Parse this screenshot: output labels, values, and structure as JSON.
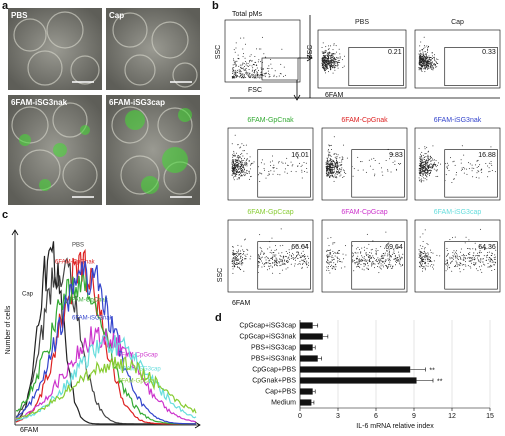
{
  "panel_a": {
    "label": "a",
    "images": [
      {
        "label": "PBS"
      },
      {
        "label": "Cap"
      },
      {
        "label": "6FAM-iSG3nak"
      },
      {
        "label": "6FAM-iSG3cap"
      }
    ]
  },
  "panel_b": {
    "label": "b",
    "y_label": "SSC",
    "x_label": "6FAM",
    "gating": {
      "title": "Total pMs",
      "y_label": "SSC",
      "x_label": "FSC"
    },
    "plots": [
      {
        "title": "PBS",
        "percent": 0.21,
        "color": "#222222"
      },
      {
        "title": "Cap",
        "percent": 0.33,
        "color": "#222222"
      },
      {
        "title": "6FAM-GpCnak",
        "percent": 16.01,
        "color": "#33aa33"
      },
      {
        "title": "6FAM-CpGnak",
        "percent": 9.83,
        "color": "#dd2222"
      },
      {
        "title": "6FAM-iSG3nak",
        "percent": 16.88,
        "color": "#3344cc"
      },
      {
        "title": "6FAM-GpCcap",
        "percent": 66.64,
        "color": "#88cc33"
      },
      {
        "title": "6FAM-CpGcap",
        "percent": 69.64,
        "color": "#cc33cc"
      },
      {
        "title": "6FAM-iSG3cap",
        "percent": 64.36,
        "color": "#66dddd"
      }
    ]
  },
  "panel_c": {
    "label": "c",
    "y_label": "Number of cells",
    "x_label": "6FAM",
    "curves": [
      {
        "name": "PBS",
        "color": "#444444"
      },
      {
        "name": "Cap",
        "color": "#222222"
      },
      {
        "name": "6FAM-CpGnak",
        "color": "#dd2222"
      },
      {
        "name": "6FAM-GpCnak",
        "color": "#33aa33"
      },
      {
        "name": "6FAM-iSG3nak",
        "color": "#3344cc"
      },
      {
        "name": "6FAM-CpGcap",
        "color": "#cc33cc"
      },
      {
        "name": "6FAM-iSG3cap",
        "color": "#66dddd"
      },
      {
        "name": "6FAM-GpCcap",
        "color": "#88cc33"
      }
    ]
  },
  "chart_data": {
    "type": "bar",
    "panel_label": "d",
    "orientation": "horizontal",
    "categories": [
      "CpGcap+iSG3cap",
      "CpGcap+iSG3nak",
      "PBS+iSG3cap",
      "PBS+iSG3nak",
      "CpGcap+PBS",
      "CpGnak+PBS",
      "Cap+PBS",
      "Medium"
    ],
    "values": [
      1.0,
      1.8,
      1.0,
      1.4,
      8.7,
      9.2,
      1.0,
      0.9
    ],
    "errors": [
      0.4,
      0.4,
      0.2,
      0.3,
      1.2,
      1.3,
      0.2,
      0.2
    ],
    "color": "#111111",
    "x_label": "IL-6 mRNA relative index",
    "xlim": [
      0,
      15
    ],
    "xticks": [
      0,
      3,
      6,
      9,
      12,
      15
    ],
    "grid": true,
    "annotations": [
      {
        "text": "**",
        "category": "CpGcap+PBS"
      },
      {
        "text": "**",
        "category": "CpGnak+PBS"
      }
    ]
  }
}
